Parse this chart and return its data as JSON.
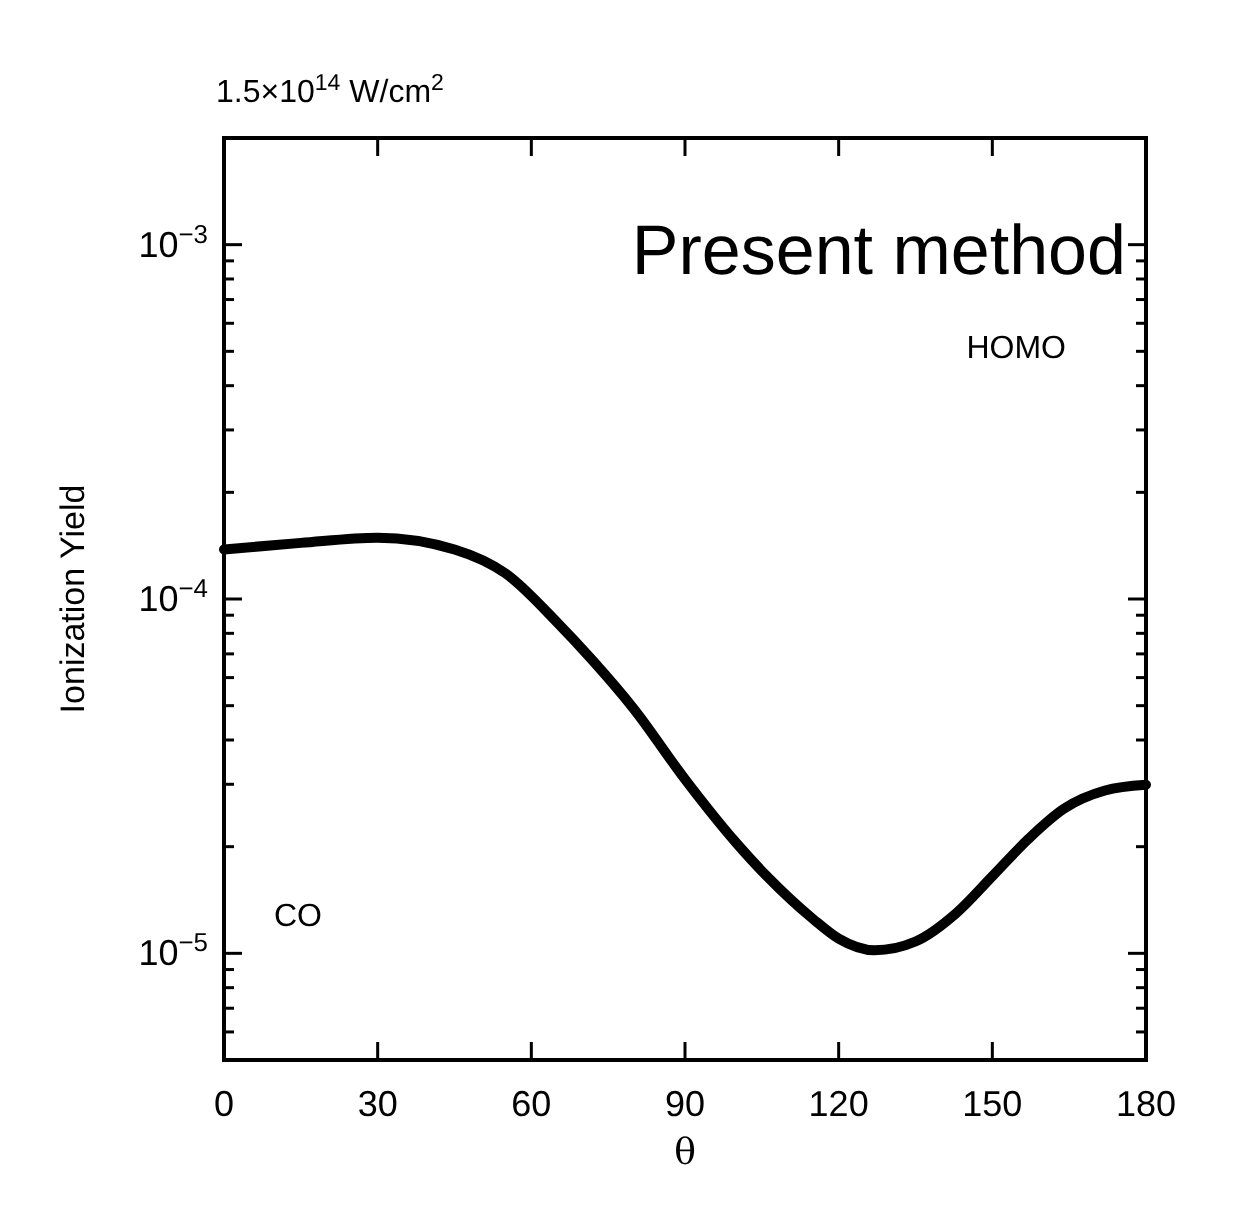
{
  "chart_data": {
    "type": "line",
    "title": "1.5×10$^{14}$ W/cm$^{2}$",
    "xlabel": "θ",
    "ylabel": "Ionization Yield",
    "annotations": [
      "Present method",
      "HOMO",
      "CO"
    ],
    "log": "y",
    "grid": false,
    "line_style": "solid",
    "xlim": [
      0,
      180
    ],
    "xticks": [
      0,
      30,
      60,
      90,
      120,
      150,
      180
    ],
    "ylim": [
      5e-06,
      0.002
    ],
    "yticks": [
      {
        "value": 6e-06,
        "label": null
      },
      {
        "value": 7e-06,
        "label": null
      },
      {
        "value": 8e-06,
        "label": null
      },
      {
        "value": 9e-06,
        "label": null
      },
      {
        "value": 1e-05,
        "label": "10$^{−5}$"
      },
      {
        "value": 2e-05,
        "label": null
      },
      {
        "value": 3e-05,
        "label": null
      },
      {
        "value": 4e-05,
        "label": null
      },
      {
        "value": 5e-05,
        "label": null
      },
      {
        "value": 6e-05,
        "label": null
      },
      {
        "value": 7e-05,
        "label": null
      },
      {
        "value": 8e-05,
        "label": null
      },
      {
        "value": 9e-05,
        "label": null
      },
      {
        "value": 0.0001,
        "label": "10$^{−4}$"
      },
      {
        "value": 0.0002,
        "label": null
      },
      {
        "value": 0.0003,
        "label": null
      },
      {
        "value": 0.0004,
        "label": null
      },
      {
        "value": 0.0005,
        "label": null
      },
      {
        "value": 0.0006,
        "label": null
      },
      {
        "value": 0.0007,
        "label": null
      },
      {
        "value": 0.0008,
        "label": null
      },
      {
        "value": 0.0009,
        "label": null
      },
      {
        "value": 0.001,
        "label": "10$^{−3}$"
      },
      {
        "value": 0.002,
        "label": null
      }
    ],
    "x": [
      0,
      15,
      30,
      45,
      55,
      65,
      72,
      80,
      90,
      100,
      106,
      115,
      120,
      127,
      135,
      143,
      150,
      157,
      164,
      172,
      180
    ],
    "series": [
      {
        "color": "#000000",
        "values": [
          0.000138,
          0.000144,
          0.000149,
          0.000138,
          0.000118,
          8.6e-05,
          6.7e-05,
          4.9e-05,
          3.1e-05,
          2.05e-05,
          1.65e-05,
          1.25e-05,
          1.1e-05,
          1.02e-05,
          1.08e-05,
          1.3e-05,
          1.65e-05,
          2.1e-05,
          2.56e-05,
          2.88e-05,
          2.99e-05
        ]
      }
    ]
  }
}
